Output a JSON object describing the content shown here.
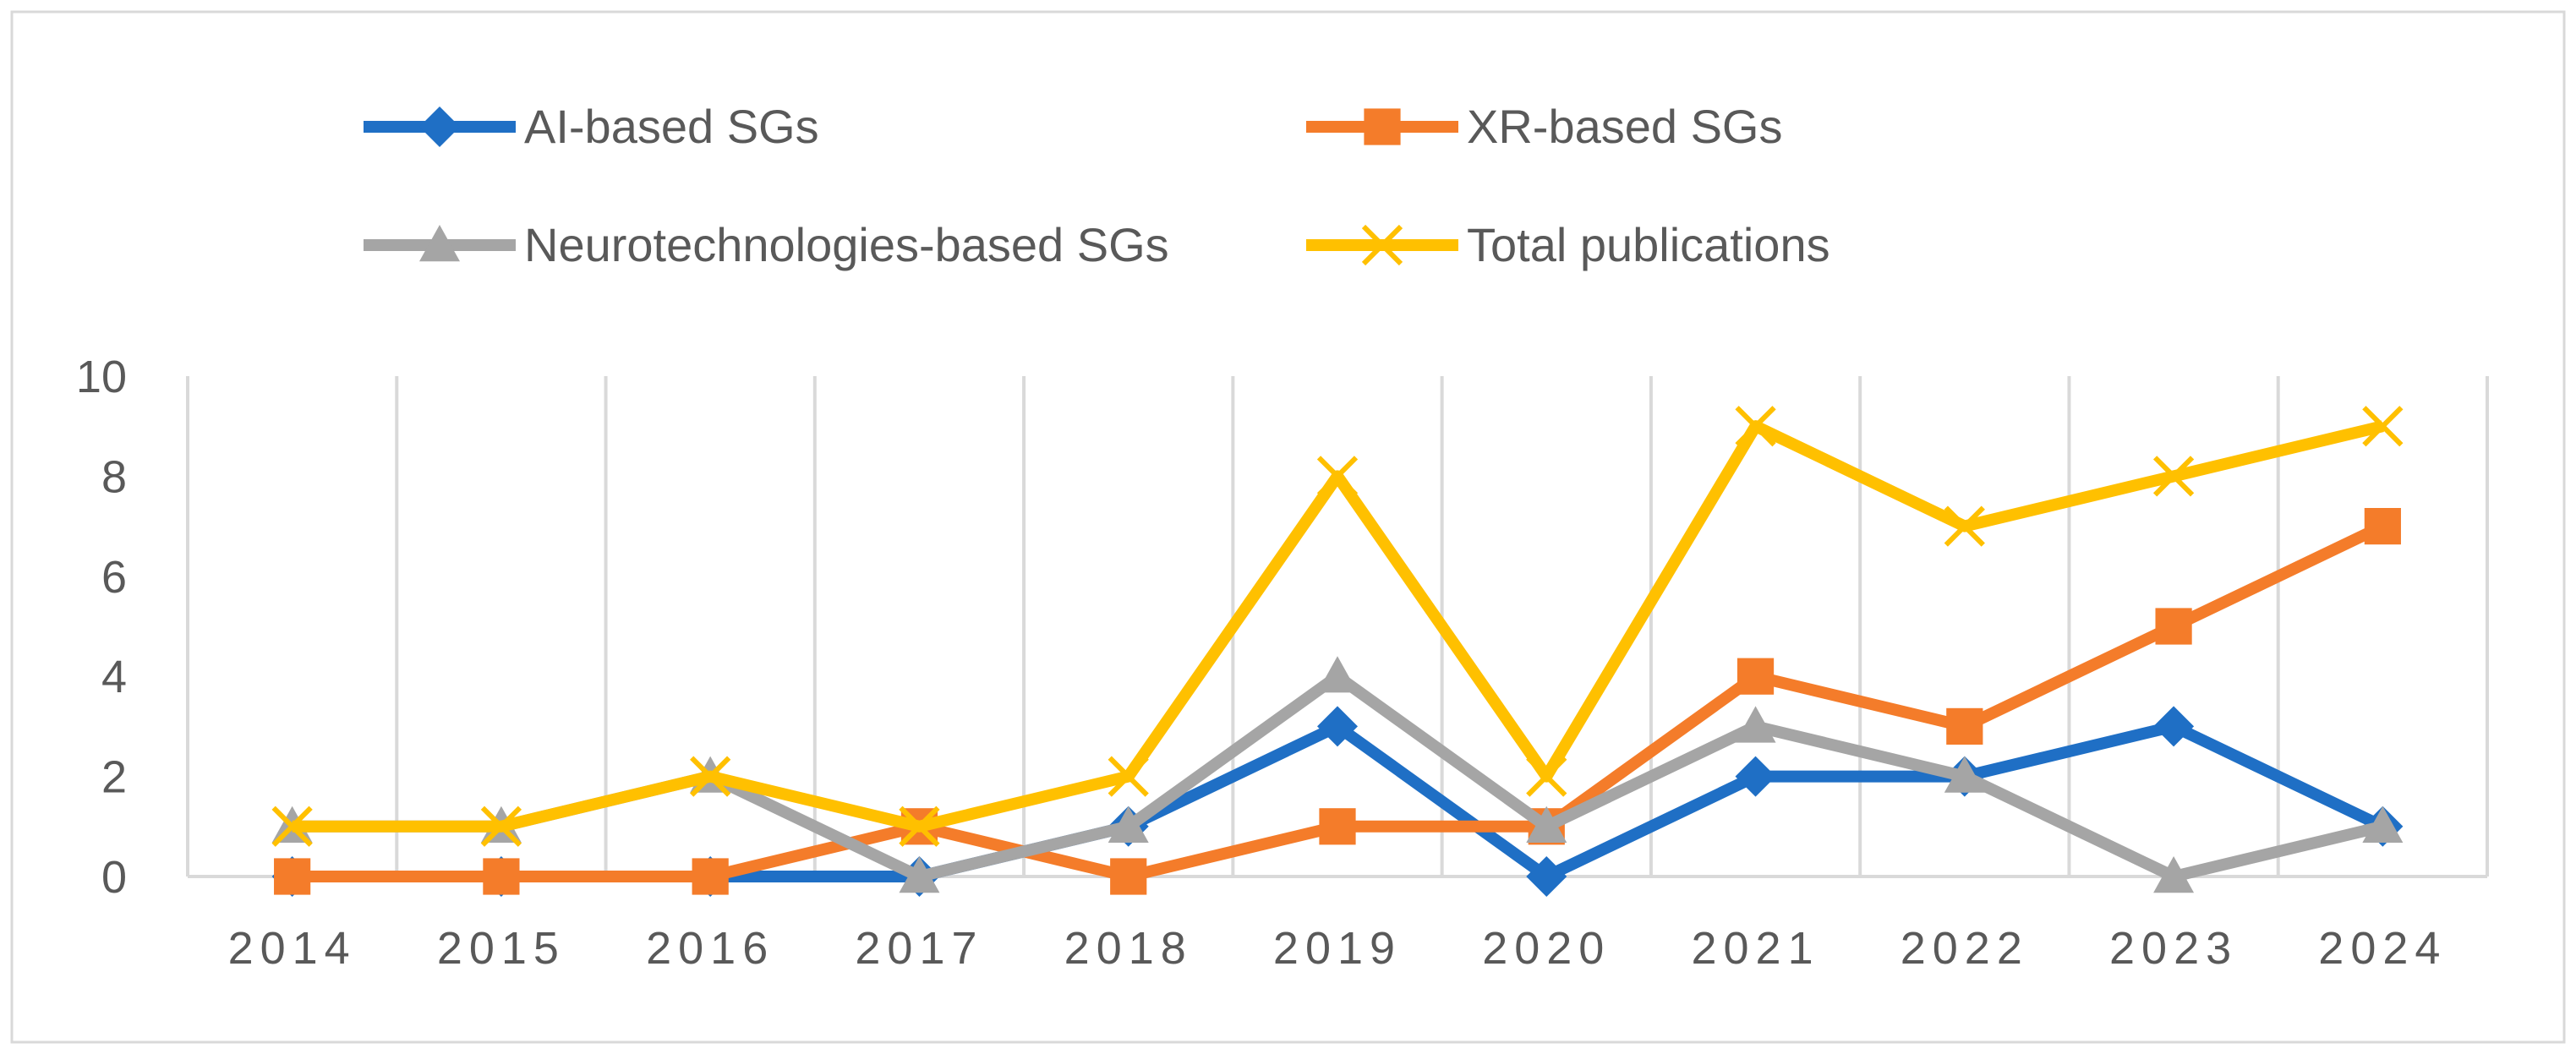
{
  "chart_data": {
    "type": "line",
    "title": "",
    "xlabel": "",
    "ylabel": "",
    "categories": [
      "2014",
      "2015",
      "2016",
      "2017",
      "2018",
      "2019",
      "2020",
      "2021",
      "2022",
      "2023",
      "2024"
    ],
    "ylim": [
      0,
      10
    ],
    "yticks": [
      "0",
      "2",
      "4",
      "6",
      "8",
      "10"
    ],
    "grid": "vertical",
    "legend_position": "top",
    "series": [
      {
        "name": "AI-based SGs",
        "marker": "diamond",
        "color": "#1f6fc5",
        "values": [
          0,
          0,
          0,
          0,
          1,
          3,
          0,
          2,
          2,
          3,
          1
        ]
      },
      {
        "name": "XR-based SGs",
        "marker": "square",
        "color": "#f47c2a",
        "values": [
          0,
          0,
          0,
          1,
          0,
          1,
          1,
          4,
          3,
          5,
          7
        ]
      },
      {
        "name": "Neurotechnologies-based SGs",
        "marker": "triangle",
        "color": "#a5a5a5",
        "values": [
          1,
          1,
          2,
          0,
          1,
          4,
          1,
          3,
          2,
          0,
          1
        ]
      },
      {
        "name": "Total publications",
        "marker": "x",
        "color": "#ffc000",
        "values": [
          1,
          1,
          2,
          1,
          2,
          8,
          2,
          9,
          7,
          8,
          9
        ]
      }
    ]
  }
}
